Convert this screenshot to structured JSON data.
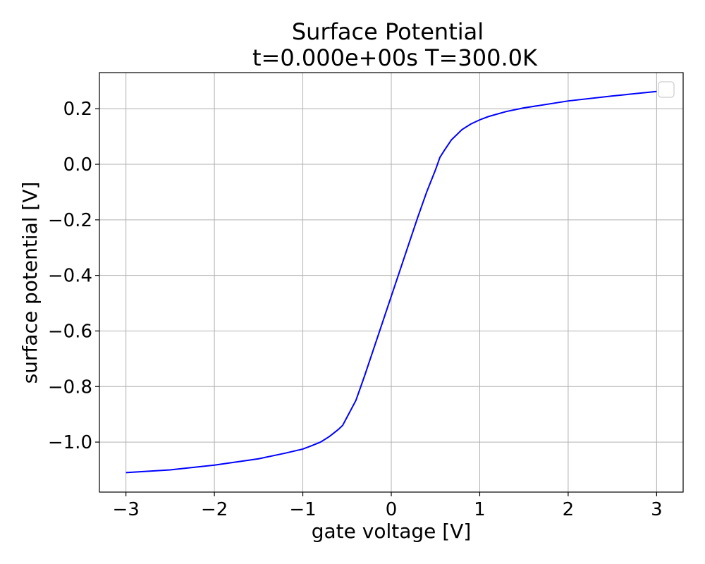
{
  "chart_data": {
    "type": "line",
    "title": "Surface Potential",
    "subtitle": "t=0.000e+00s T=300.0K",
    "xlabel": "gate voltage [V]",
    "ylabel": "surface potential [V]",
    "xlim": [
      -3.3,
      3.3
    ],
    "ylim": [
      -1.18,
      0.33
    ],
    "x_ticks": [
      -3,
      -2,
      -1,
      0,
      1,
      2,
      3
    ],
    "x_tick_labels": [
      "−3",
      "−2",
      "−1",
      "0",
      "1",
      "2",
      "3"
    ],
    "y_ticks": [
      0.2,
      0.0,
      -0.2,
      -0.4,
      -0.6,
      -0.8,
      -1.0
    ],
    "y_tick_labels": [
      "0.2",
      "0.0",
      "−0.2",
      "−0.4",
      "−0.6",
      "−0.8",
      "−1.0"
    ],
    "grid": true,
    "legend": "top-right",
    "series": [
      {
        "color": "#0000ff",
        "x": [
          -3.0,
          -2.5,
          -2.0,
          -1.5,
          -1.2,
          -1.0,
          -0.9,
          -0.8,
          -0.7,
          -0.6,
          -0.55,
          -0.5,
          -0.45,
          -0.4,
          -0.3,
          -0.2,
          -0.1,
          0.0,
          0.1,
          0.2,
          0.3,
          0.4,
          0.45,
          0.5,
          0.55,
          0.6,
          0.68,
          0.8,
          0.9,
          1.0,
          1.1,
          1.3,
          1.5,
          2.0,
          2.5,
          3.0
        ],
        "y": [
          -1.11,
          -1.1,
          -1.083,
          -1.06,
          -1.04,
          -1.025,
          -1.013,
          -1.0,
          -0.98,
          -0.955,
          -0.94,
          -0.91,
          -0.88,
          -0.85,
          -0.76,
          -0.665,
          -0.57,
          -0.475,
          -0.38,
          -0.285,
          -0.19,
          -0.1,
          -0.06,
          -0.02,
          0.025,
          0.05,
          0.088,
          0.125,
          0.145,
          0.16,
          0.172,
          0.19,
          0.203,
          0.228,
          0.246,
          0.262
        ]
      }
    ]
  }
}
